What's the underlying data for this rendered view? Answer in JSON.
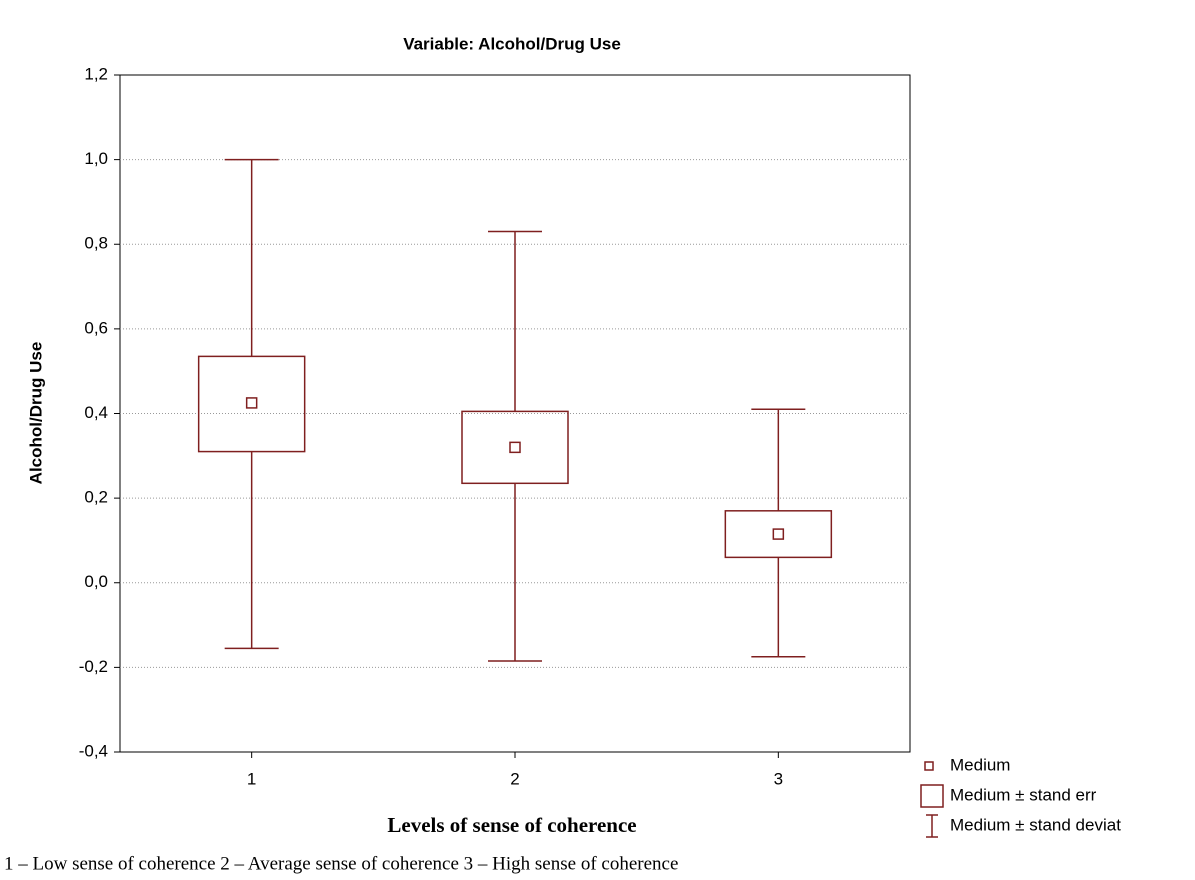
{
  "chart_data": {
    "type": "box",
    "title": "Variable: Alcohol/Drug Use",
    "y_label": "Alcohol/Drug Use",
    "x_label": "Levels of sense of coherence",
    "footnote": "1 – Low sense of coherence 2 – Average sense of coherence 3 – High sense of coherence",
    "categories": [
      "1",
      "2",
      "3"
    ],
    "color": "#7f1f1f",
    "grid": true,
    "legend": [
      "Medium",
      "Medium ± stand err",
      "Medium ± stand deviat"
    ],
    "means": [
      0.425,
      0.32,
      0.115
    ],
    "se_low": [
      0.31,
      0.235,
      0.06
    ],
    "se_high": [
      0.535,
      0.405,
      0.17
    ],
    "sd_low": [
      -0.155,
      -0.185,
      -0.175
    ],
    "sd_high": [
      1.0,
      0.83,
      0.41
    ],
    "ylim": [
      -0.4,
      1.2
    ],
    "yticks": [
      {
        "value": -0.4,
        "label": "-0,4"
      },
      {
        "value": -0.2,
        "label": "-0,2"
      },
      {
        "value": 0,
        "label": "0,0"
      },
      {
        "value": 0.2,
        "label": "0,2"
      },
      {
        "value": 0.4,
        "label": "0,4"
      },
      {
        "value": 0.6,
        "label": "0,6"
      },
      {
        "value": 0.8,
        "label": "0,8"
      },
      {
        "value": 1.0,
        "label": "1,0"
      },
      {
        "value": 1.2,
        "label": "1,2"
      }
    ]
  }
}
